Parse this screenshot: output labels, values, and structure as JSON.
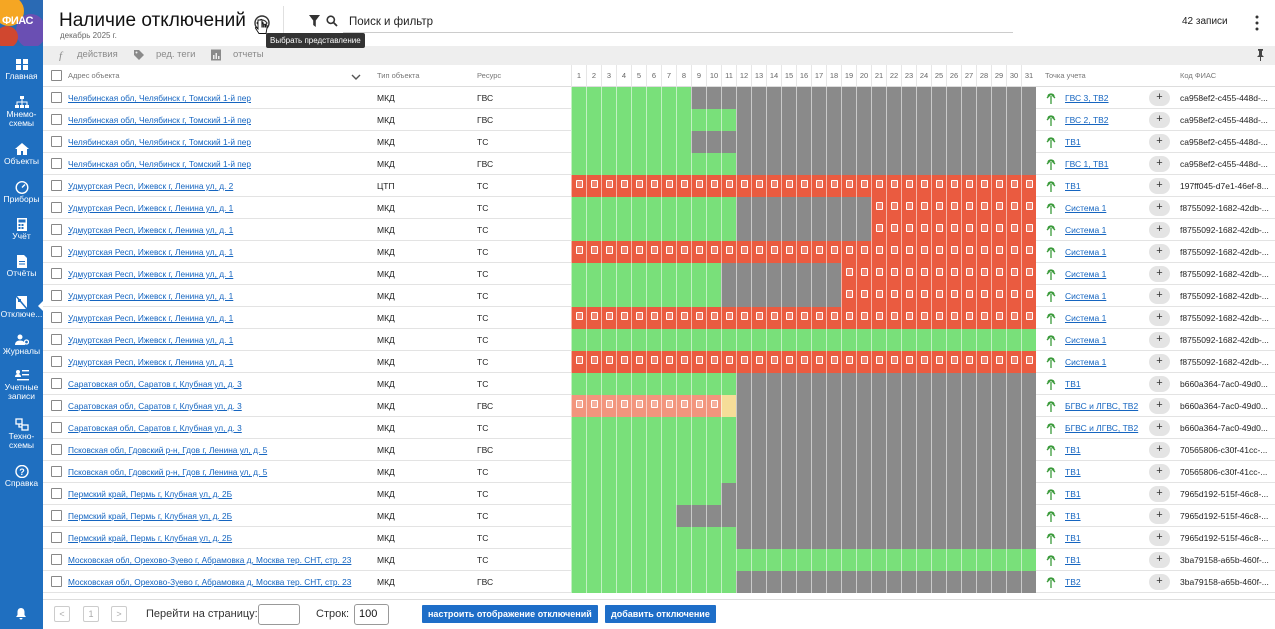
{
  "app": {
    "logo_text": "ФИАС"
  },
  "sidebar": {
    "items": [
      {
        "label": "Главная",
        "icon": "grid-icon"
      },
      {
        "label": "Мнемо-\nсхемы",
        "icon": "hierarchy-icon"
      },
      {
        "label": "Объекты",
        "icon": "home-icon"
      },
      {
        "label": "Приборы",
        "icon": "gauge-icon"
      },
      {
        "label": "Учёт",
        "icon": "calculator-icon"
      },
      {
        "label": "Отчёты",
        "icon": "report-icon"
      },
      {
        "label": "Отключе...",
        "icon": "outage-icon",
        "active": true
      },
      {
        "label": "Журналы",
        "icon": "people-gear-icon"
      },
      {
        "label": "Учетные\nзаписи",
        "icon": "accounts-icon"
      },
      {
        "label": "Техно-\nсхемы",
        "icon": "scheme-icon"
      },
      {
        "label": "Справка",
        "icon": "help-icon"
      }
    ]
  },
  "header": {
    "title": "Наличие отключений",
    "subtitle": "декабрь 2025 г.",
    "tooltip": "Выбрать представление",
    "search_label": "Поиск и фильтр",
    "records_count": "42 записи"
  },
  "toolbar": {
    "actions": "действия",
    "edit_tags": "ред. теги",
    "reports": "отчеты"
  },
  "columns": {
    "address": "Адрес объекта",
    "object_type": "Тип объекта",
    "resource": "Ресурс",
    "days": [
      "1",
      "2",
      "3",
      "4",
      "5",
      "6",
      "7",
      "8",
      "9",
      "10",
      "11",
      "12",
      "13",
      "14",
      "15",
      "16",
      "17",
      "18",
      "19",
      "20",
      "21",
      "22",
      "23",
      "24",
      "25",
      "26",
      "27",
      "28",
      "29",
      "30",
      "31"
    ],
    "meter_point": "Точка учета",
    "fias_code": "Код ФИАС"
  },
  "legend_colors": {
    "g": "#79e07a",
    "x": "#8a8a8a",
    "r": "#ea5b40",
    "s": "#f2957d",
    "y": "#f6dd98"
  },
  "rows": [
    {
      "address": "Челябинская обл, Челябинск г, Томский 1-й пер",
      "type": "МКД",
      "resource": "ГВС",
      "point": "ГВС 3, ТВ2",
      "fias": "ca958ef2-c455-448d-...",
      "days": "ggggggggxxxxxxxxxxxxxxxxxxxxxxx"
    },
    {
      "address": "Челябинская обл, Челябинск г, Томский 1-й пер",
      "type": "МКД",
      "resource": "ГВС",
      "point": "ГВС 2, ТВ2",
      "fias": "ca958ef2-c455-448d-...",
      "days": "gggggggggggxxxxxxxxxxxxxxxxxxxx"
    },
    {
      "address": "Челябинская обл, Челябинск г, Томский 1-й пер",
      "type": "МКД",
      "resource": "ТС",
      "point": "ТВ1",
      "fias": "ca958ef2-c455-448d-...",
      "days": "ggggggggxxxxxxxxxxxxxxxxxxxxxxx"
    },
    {
      "address": "Челябинская обл, Челябинск г, Томский 1-й пер",
      "type": "МКД",
      "resource": "ГВС",
      "point": "ГВС 1, ТВ1",
      "fias": "ca958ef2-c455-448d-...",
      "days": "gggggggggggxxxxxxxxxxxxxxxxxxxx"
    },
    {
      "address": "Удмуртская Респ, Ижевск г, Ленина ул, д. 2",
      "type": "ЦТП",
      "resource": "ТС",
      "point": "ТВ1",
      "fias": "197ff045-d7e1-46ef-8...",
      "days": "rrrrrrrrrrrrrrrrrrrrrrrrrrrrrrr"
    },
    {
      "address": "Удмуртская Респ, Ижевск г, Ленина ул, д. 1",
      "type": "МКД",
      "resource": "ТС",
      "point": "Система 1",
      "fias": "f8755092-1682-42db-...",
      "days": "gggggggggggxxxxxxxxxrrrrrrrrrrr"
    },
    {
      "address": "Удмуртская Респ, Ижевск г, Ленина ул, д. 1",
      "type": "МКД",
      "resource": "ТС",
      "point": "Система 1",
      "fias": "f8755092-1682-42db-...",
      "days": "gggggggggggxxxxxxxxxrrrrrrrrrrr"
    },
    {
      "address": "Удмуртская Респ, Ижевск г, Ленина ул, д. 1",
      "type": "МКД",
      "resource": "ТС",
      "point": "Система 1",
      "fias": "f8755092-1682-42db-...",
      "days": "rrrrrrrrrrrrrrrrrrrrrrrrrrrrrrr"
    },
    {
      "address": "Удмуртская Респ, Ижевск г, Ленина ул, д. 1",
      "type": "МКД",
      "resource": "ТС",
      "point": "Система 1",
      "fias": "f8755092-1682-42db-...",
      "days": "ggggggggggxxxxxxxxrrrrrrrrrrrrr"
    },
    {
      "address": "Удмуртская Респ, Ижевск г, Ленина ул, д. 1",
      "type": "МКД",
      "resource": "ТС",
      "point": "Система 1",
      "fias": "f8755092-1682-42db-...",
      "days": "ggggggggggxxxxxxxxrrrrrrrrrrrrr"
    },
    {
      "address": "Удмуртская Респ, Ижевск г, Ленина ул, д. 1",
      "type": "МКД",
      "resource": "ТС",
      "point": "Система 1",
      "fias": "f8755092-1682-42db-...",
      "days": "rrrrrrrrrrrrrrrrrrrrrrrrrrrrrrr"
    },
    {
      "address": "Удмуртская Респ, Ижевск г, Ленина ул, д. 1",
      "type": "МКД",
      "resource": "ТС",
      "point": "Система 1",
      "fias": "f8755092-1682-42db-...",
      "days": "ggggggggggggggggggggggggggggggg"
    },
    {
      "address": "Удмуртская Респ, Ижевск г, Ленина ул, д. 1",
      "type": "МКД",
      "resource": "ТС",
      "point": "Система 1",
      "fias": "f8755092-1682-42db-...",
      "days": "rrrrrrrrrrrrrrrrrrrrrrrrrrrrrrr"
    },
    {
      "address": "Саратовская обл, Саратов г, Клубная ул, д. 3",
      "type": "МКД",
      "resource": "ТС",
      "point": "ТВ1",
      "fias": "b660a364-7ac0-49d0...",
      "days": "gggggggggggxxxxxxxxxxxxxxxxxxxx"
    },
    {
      "address": "Саратовская обл, Саратов г, Клубная ул, д. 3",
      "type": "МКД",
      "resource": "ГВС",
      "point": "БГВС и ЛГВС, ТВ2",
      "fias": "b660a364-7ac0-49d0...",
      "days": "ssssssssssyxxxxxxxxxxxxxxxxxxxx"
    },
    {
      "address": "Саратовская обл, Саратов г, Клубная ул, д. 3",
      "type": "МКД",
      "resource": "ТС",
      "point": "БГВС и ЛГВС, ТВ2",
      "fias": "b660a364-7ac0-49d0...",
      "days": "gggggggggggxxxxxxxxxxxxxxxxxxxx"
    },
    {
      "address": "Псковская обл, Гдовский р-н, Гдов г, Ленина ул, д. 5",
      "type": "МКД",
      "resource": "ГВС",
      "point": "ТВ1",
      "fias": "70565806-c30f-41cc-...",
      "days": "gggggggggggxxxxxxxxxxxxxxxxxxxx"
    },
    {
      "address": "Псковская обл, Гдовский р-н, Гдов г, Ленина ул, д. 5",
      "type": "МКД",
      "resource": "ТС",
      "point": "ТВ1",
      "fias": "70565806-c30f-41cc-...",
      "days": "gggggggggggxxxxxxxxxxxxxxxxxxxx"
    },
    {
      "address": "Пермский край, Пермь г, Клубная ул, д. 2Б",
      "type": "МКД",
      "resource": "ТС",
      "point": "ТВ1",
      "fias": "7965d192-515f-46c8-...",
      "days": "ggggggggggxxxxxxxxxxxxxxxxxxxxx"
    },
    {
      "address": "Пермский край, Пермь г, Клубная ул, д. 2Б",
      "type": "МКД",
      "resource": "ТС",
      "point": "ТВ1",
      "fias": "7965d192-515f-46c8-...",
      "days": "gggggggxxxxxxxxxxxxxxxxxxxxxxxx"
    },
    {
      "address": "Пермский край, Пермь г, Клубная ул, д. 2Б",
      "type": "МКД",
      "resource": "ТС",
      "point": "ТВ1",
      "fias": "7965d192-515f-46c8-...",
      "days": "gggggggggggxxxxxxxxxxxxxxxxxxxx"
    },
    {
      "address": "Московская обл, Орехово-Зуево г, Абрамовка д, Москва тер. СНТ, стр. 23",
      "type": "МКД",
      "resource": "ТС",
      "point": "ТВ1",
      "fias": "3ba79158-a65b-460f-...",
      "days": "ggggggggggggggggggggggggggggggg"
    },
    {
      "address": "Московская обл, Орехово-Зуево г, Абрамовка д, Москва тер. СНТ, стр. 23",
      "type": "МКД",
      "resource": "ГВС",
      "point": "ТВ2",
      "fias": "3ba79158-a65b-460f-...",
      "days": "gggggggggggxxxxxxxxxxxxxxxxxxxx"
    }
  ],
  "footer": {
    "prev": "<",
    "page": "1",
    "next": ">",
    "goto_label": "Перейти на страницу:",
    "rows_label": "Строк:",
    "rows_value": "100",
    "configure_button": "настроить отображение отключений",
    "add_button": "добавить отключение"
  }
}
